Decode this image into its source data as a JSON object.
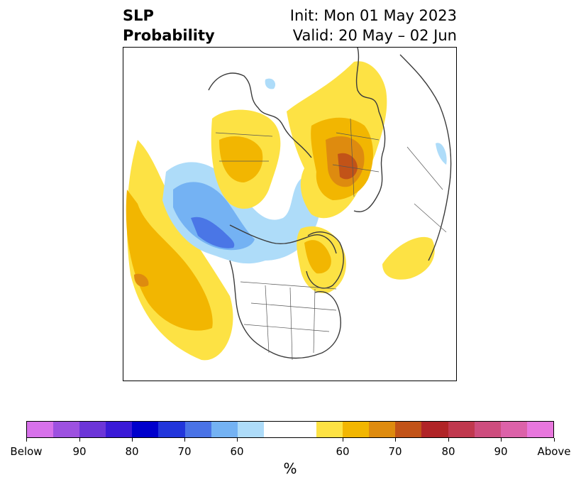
{
  "title": {
    "left_line1": "SLP",
    "left_line2": "Probability",
    "init": "Init: Mon 01 May 2023",
    "valid": "Valid: 20 May – 02 Jun"
  },
  "map": {
    "description_visible": false,
    "projection": "polar stereographic, North America / Arctic",
    "below_colors": [
      "#aedcf9",
      "#74b2f3",
      "#4a76e6",
      "#2238d9"
    ],
    "above_colors": [
      "#fde244",
      "#f2b601",
      "#de8b0f",
      "#c25318"
    ]
  },
  "colorbar": {
    "colors": [
      "#d771ea",
      "#9d51e0",
      "#6c35d8",
      "#3a1ad7",
      "#0000cc",
      "#2236db",
      "#4a73e6",
      "#74b2f3",
      "#aedcf9",
      "#ffffff",
      "#fde244",
      "#f2b601",
      "#de8b0f",
      "#c25318",
      "#b02427",
      "#c0384e",
      "#cd4d7e",
      "#dc62a9",
      "#e877dd"
    ],
    "tick_labels": [
      "Below",
      "90",
      "80",
      "70",
      "60",
      "60",
      "70",
      "80",
      "90",
      "Above"
    ],
    "unit": "%"
  }
}
